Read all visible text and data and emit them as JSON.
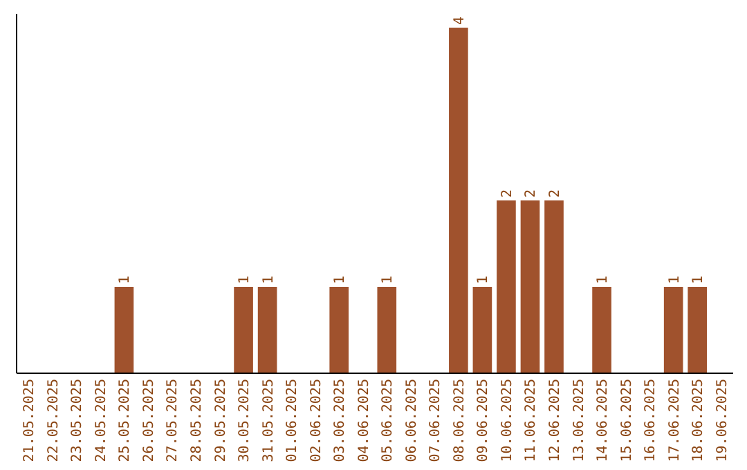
{
  "chart_data": {
    "type": "bar",
    "categories": [
      "21.05.2025",
      "22.05.2025",
      "23.05.2025",
      "24.05.2025",
      "25.05.2025",
      "26.05.2025",
      "27.05.2025",
      "28.05.2025",
      "29.05.2025",
      "30.05.2025",
      "31.05.2025",
      "01.06.2025",
      "02.06.2025",
      "03.06.2025",
      "04.06.2025",
      "05.06.2025",
      "06.06.2025",
      "07.06.2025",
      "08.06.2025",
      "09.06.2025",
      "10.06.2025",
      "11.06.2025",
      "12.06.2025",
      "13.06.2025",
      "14.06.2025",
      "15.06.2025",
      "16.06.2025",
      "17.06.2025",
      "18.06.2025",
      "19.06.2025"
    ],
    "values": [
      0,
      0,
      0,
      0,
      1,
      0,
      0,
      0,
      0,
      1,
      1,
      0,
      0,
      1,
      0,
      1,
      0,
      0,
      4,
      1,
      2,
      2,
      2,
      0,
      1,
      0,
      0,
      1,
      1,
      0
    ],
    "value_labels": [
      null,
      null,
      null,
      null,
      "1",
      null,
      null,
      null,
      null,
      "1",
      "1",
      null,
      null,
      "1",
      null,
      "1",
      null,
      null,
      "4",
      "1",
      "2",
      "2",
      "2",
      null,
      "1",
      null,
      null,
      "1",
      "1",
      null
    ],
    "color": "#a0522d"
  }
}
